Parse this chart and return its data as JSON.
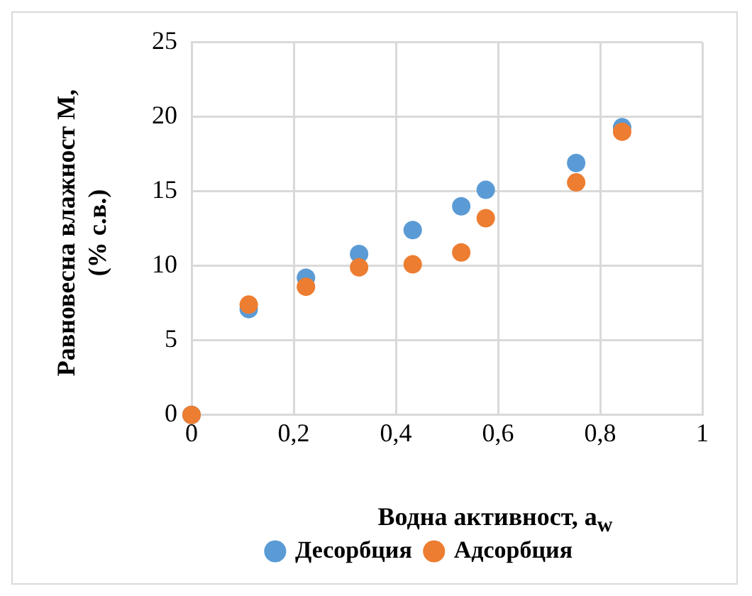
{
  "chart_data": {
    "type": "scatter",
    "xlabel": "Водна активност, a$_{w}$",
    "ylabel": "Равновесна влажност М, (% с.в.)",
    "xlim": [
      0,
      1
    ],
    "xticks": [
      {
        "value": 0,
        "label": "0"
      },
      {
        "value": 0.2,
        "label": "0,2"
      },
      {
        "value": 0.4,
        "label": "0,4"
      },
      {
        "value": 0.6,
        "label": "0,6"
      },
      {
        "value": 0.8,
        "label": "0,8"
      },
      {
        "value": 1,
        "label": "1"
      }
    ],
    "ylim": [
      0,
      25
    ],
    "yticks": [
      0,
      5,
      10,
      15,
      20,
      25
    ],
    "grid": true,
    "legend": "bottom",
    "marker": "circle",
    "series": [
      {
        "name": "Десорбция",
        "color": "#5b9bd5",
        "x": [
          0,
          0.112,
          0.224,
          0.328,
          0.433,
          0.528,
          0.576,
          0.753,
          0.843
        ],
        "values": [
          0,
          7.1,
          9.2,
          10.8,
          12.4,
          14.0,
          15.1,
          16.9,
          19.3
        ]
      },
      {
        "name": "Адсорбция",
        "color": "#ed7d31",
        "x": [
          0,
          0.112,
          0.224,
          0.328,
          0.433,
          0.528,
          0.576,
          0.753,
          0.843
        ],
        "values": [
          0,
          7.4,
          8.6,
          9.9,
          10.1,
          10.9,
          13.2,
          15.6,
          19.0
        ]
      }
    ]
  }
}
